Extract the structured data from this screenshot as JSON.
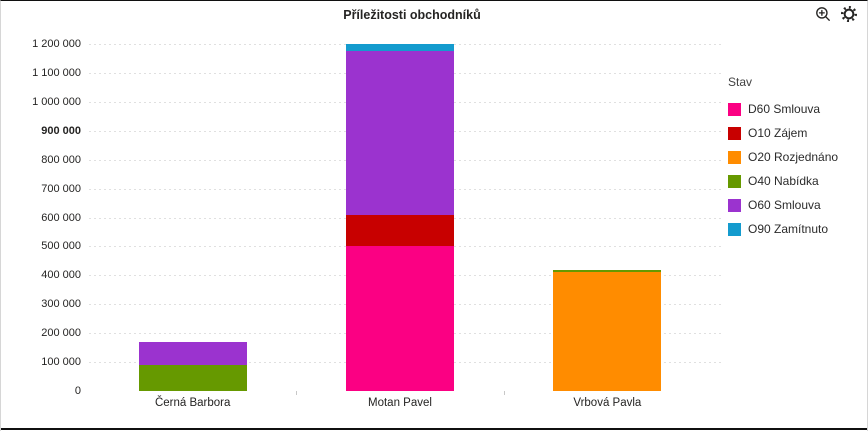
{
  "header": {
    "toolbar_icons": [
      {
        "icon": "magnifier-plus",
        "meaning": "zoom-in"
      },
      {
        "icon": "gear",
        "meaning": "settings"
      }
    ]
  },
  "chart_data": {
    "type": "bar",
    "stacked": true,
    "title": "Příležitosti obchodníků",
    "categories": [
      "Černá Barbora",
      "Motan Pavel",
      "Vrbová Pavla"
    ],
    "series": [
      {
        "name": "D60 Smlouva",
        "color": "#FB0083",
        "values": [
          0,
          500000,
          0
        ]
      },
      {
        "name": "O10 Zájem",
        "color": "#C80000",
        "values": [
          0,
          110000,
          0
        ]
      },
      {
        "name": "O20 Rozjednáno",
        "color": "#FF8C00",
        "values": [
          0,
          0,
          410000
        ]
      },
      {
        "name": "O40 Nabídka",
        "color": "#669900",
        "values": [
          90000,
          0,
          10000
        ]
      },
      {
        "name": "O60 Smlouva",
        "color": "#9B33CF",
        "values": [
          80000,
          565000,
          0
        ]
      },
      {
        "name": "O90 Zamítnuto",
        "color": "#149BCE",
        "values": [
          0,
          25000,
          0
        ]
      }
    ],
    "ylim": [
      0,
      1200000
    ],
    "ytick_step": 100000,
    "yticks": [
      {
        "value": 0,
        "label": "0"
      },
      {
        "value": 100000,
        "label": "100 000"
      },
      {
        "value": 200000,
        "label": "200 000"
      },
      {
        "value": 300000,
        "label": "300 000"
      },
      {
        "value": 400000,
        "label": "400 000"
      },
      {
        "value": 500000,
        "label": "500 000"
      },
      {
        "value": 600000,
        "label": "600 000"
      },
      {
        "value": 700000,
        "label": "700 000"
      },
      {
        "value": 800000,
        "label": "800 000"
      },
      {
        "value": 900000,
        "label": "900 000",
        "bold": true
      },
      {
        "value": 1000000,
        "label": "1 000 000"
      },
      {
        "value": 1100000,
        "label": "1 100 000"
      },
      {
        "value": 1200000,
        "label": "1 200 000"
      }
    ],
    "grid": "dashed-horizontal",
    "legend": {
      "title": "Stav",
      "position": "right"
    }
  }
}
